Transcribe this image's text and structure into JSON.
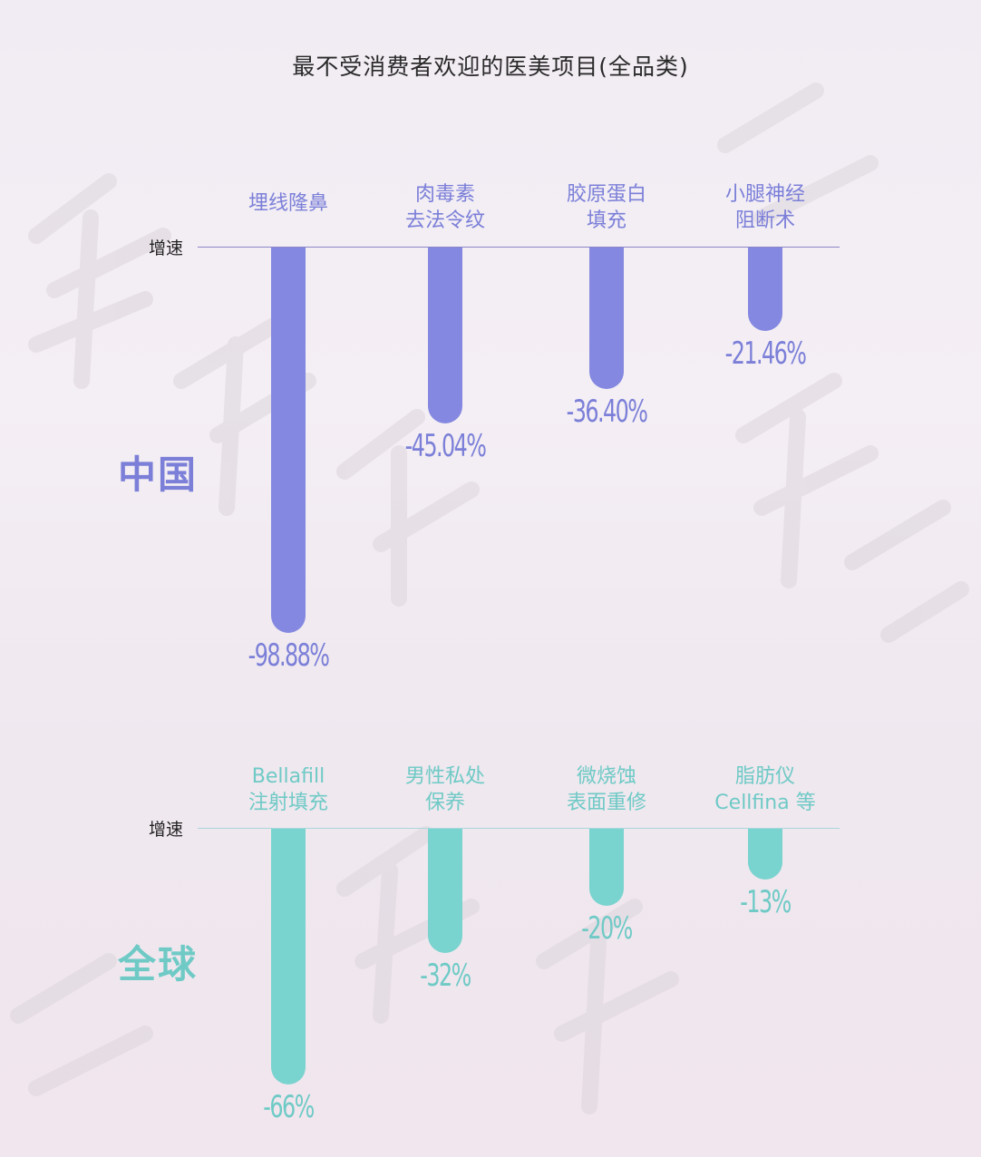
{
  "title": "最不受消费者欢迎的医美项目(全品类)",
  "colors": {
    "china": "#8488e0",
    "global": "#79d3cf",
    "china_text": "#7b7fd8",
    "global_text": "#6fcac6"
  },
  "chart_data": [
    {
      "type": "bar",
      "name": "中国",
      "axis_label": "增速",
      "ylim": [
        -100,
        0
      ],
      "categories": [
        [
          "埋线隆鼻"
        ],
        [
          "肉毒素",
          "去法令纹"
        ],
        [
          "胶原蛋白",
          "填充"
        ],
        [
          "小腿神经",
          "阻断术"
        ]
      ],
      "values": [
        -98.88,
        -45.04,
        -36.4,
        -21.46
      ],
      "value_labels": [
        "-98.88%",
        "-45.04%",
        "-36.40%",
        "-21.46%"
      ]
    },
    {
      "type": "bar",
      "name": "全球",
      "axis_label": "增速",
      "ylim": [
        -70,
        0
      ],
      "categories": [
        [
          "Bellafill",
          "注射填充"
        ],
        [
          "男性私处",
          "保养"
        ],
        [
          "微烧蚀",
          "表面重修"
        ],
        [
          "脂肪仪",
          "Cellfina 等"
        ]
      ],
      "values": [
        -66,
        -32,
        -20,
        -13
      ],
      "value_labels": [
        "-66%",
        "-32%",
        "-20%",
        "-13%"
      ]
    }
  ]
}
